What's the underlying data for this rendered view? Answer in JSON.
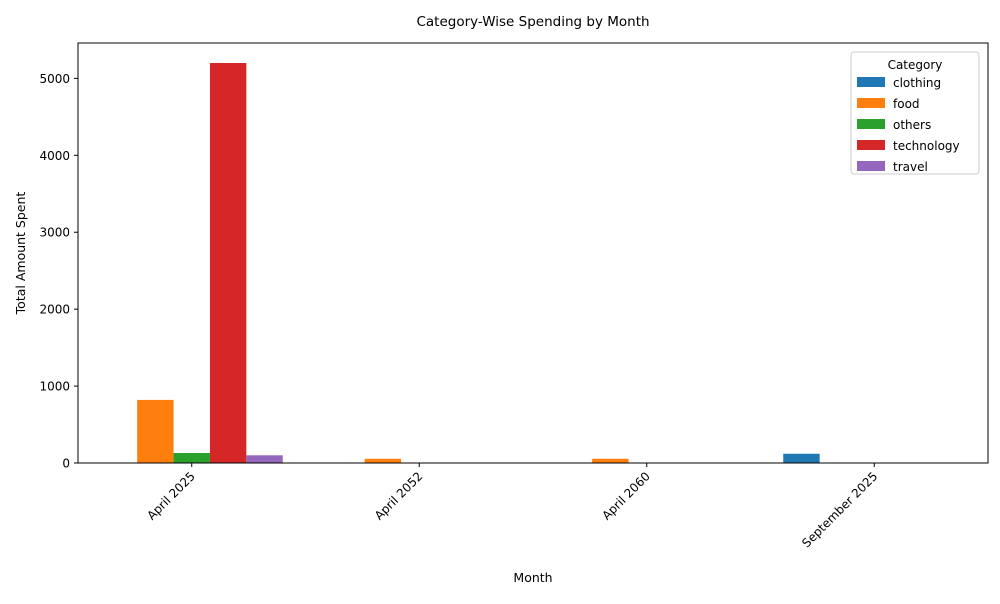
{
  "chart_data": {
    "type": "bar",
    "title": "Category-Wise Spending by Month",
    "xlabel": "Month",
    "ylabel": "Total Amount Spent",
    "categories": [
      "April 2025",
      "April 2052",
      "April 2060",
      "September 2025"
    ],
    "ylim": [
      0,
      5460
    ],
    "yticks": [
      0,
      1000,
      2000,
      3000,
      4000,
      5000
    ],
    "grid": false,
    "legend": {
      "title": "Category",
      "position": "top-right"
    },
    "series": [
      {
        "name": "clothing",
        "color": "#1f77b4",
        "values": [
          0,
          0,
          0,
          120
        ]
      },
      {
        "name": "food",
        "color": "#ff7f0e",
        "values": [
          820,
          55,
          55,
          0
        ]
      },
      {
        "name": "others",
        "color": "#2ca02c",
        "values": [
          130,
          0,
          0,
          0
        ]
      },
      {
        "name": "technology",
        "color": "#d62728",
        "values": [
          5200,
          0,
          0,
          0
        ]
      },
      {
        "name": "travel",
        "color": "#9467bd",
        "values": [
          100,
          0,
          0,
          0
        ]
      }
    ]
  }
}
